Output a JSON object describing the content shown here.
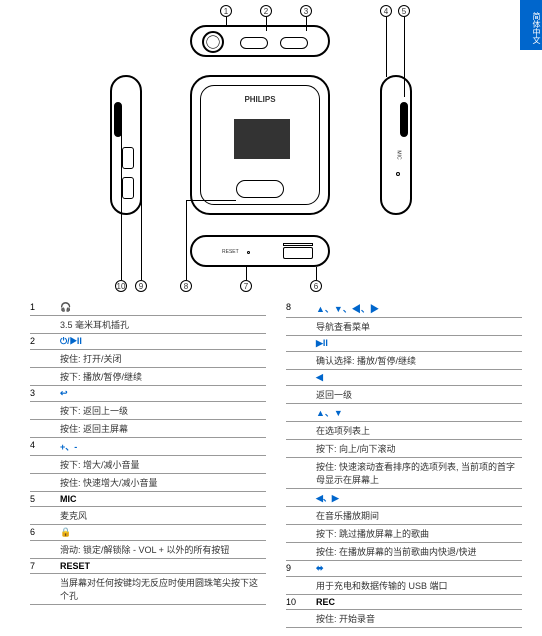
{
  "tab_label": "简体中文",
  "brand": "PHILIPS",
  "reset_label": "RESET",
  "callouts": [
    "1",
    "2",
    "3",
    "4",
    "5",
    "6",
    "7",
    "8",
    "9",
    "10"
  ],
  "left_col": [
    {
      "num": "1",
      "icon": "🎧",
      "icon_color": "#0066cc",
      "lines": [
        "3.5 毫米耳机插孔"
      ]
    },
    {
      "num": "2",
      "icon": "⏻/▶II",
      "icon_color": "#0066cc",
      "lines": [
        "按住: 打开/关闭",
        "按下: 播放/暂停/继续"
      ]
    },
    {
      "num": "3",
      "icon": "↩",
      "icon_color": "#0066cc",
      "lines": [
        "按下: 返回上一级",
        "按住: 返回主屏幕"
      ]
    },
    {
      "num": "4",
      "icon": "+、-",
      "icon_color": "#0066cc",
      "lines": [
        "按下: 增大/减小音量",
        "按住: 快速增大/减小音量"
      ]
    },
    {
      "num": "5",
      "icon": "MIC",
      "icon_color": "#000",
      "lines": [
        "麦克风"
      ]
    },
    {
      "num": "6",
      "icon": "🔒",
      "icon_color": "#0066cc",
      "lines": [
        "滑动: 锁定/解锁除 - VOL + 以外的所有按钮"
      ]
    },
    {
      "num": "7",
      "icon": "RESET",
      "icon_color": "#000",
      "lines": [
        "当屏幕对任何按键均无反应时使用圆珠笔尖按下这个孔"
      ]
    }
  ],
  "right_col": [
    {
      "num": "8",
      "icon": "▲、▼、◀、▶",
      "icon_color": "#0066cc",
      "lines": [
        "导航查看菜单"
      ]
    },
    {
      "num": "",
      "icon": "▶II",
      "icon_color": "#0066cc",
      "lines": [
        "确认选择: 播放/暂停/继续"
      ]
    },
    {
      "num": "",
      "icon": "◀",
      "icon_color": "#0066cc",
      "lines": [
        "返回一级"
      ]
    },
    {
      "num": "",
      "icon": "▲、▼",
      "icon_color": "#0066cc",
      "lines": [
        "在选项列表上",
        "按下: 向上/向下滚动",
        "按住: 快速滚动查看排序的选项列表, 当前项的首字母显示在屏幕上"
      ]
    },
    {
      "num": "",
      "icon": "◀、▶",
      "icon_color": "#0066cc",
      "lines": [
        "在音乐播放期间",
        "按下: 跳过播放屏幕上的歌曲",
        "按住: 在播放屏幕的当前歌曲内快退/快进"
      ]
    },
    {
      "num": "9",
      "icon": "⬌",
      "icon_color": "#0066cc",
      "lines": [
        "用于充电和数据传输的 USB 端口"
      ]
    },
    {
      "num": "10",
      "icon": "REC",
      "icon_color": "#000",
      "lines": [
        "按住: 开始录音"
      ]
    }
  ],
  "colors": {
    "accent": "#0066cc",
    "border": "#999",
    "text": "#333"
  }
}
